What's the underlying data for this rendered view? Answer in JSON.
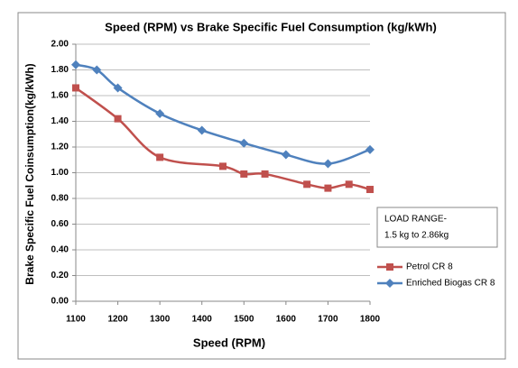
{
  "chart_data": {
    "type": "line",
    "title": "Speed (RPM) vs  Brake Specific Fuel Consumption (kg/kWh)",
    "xlabel": "Speed (RPM)",
    "ylabel": "Brake Specific Fuel Coinsumption(kg/kWh)",
    "annotation": [
      "LOAD RANGE-",
      "1.5 kg to 2.86kg"
    ],
    "xlim": [
      1100,
      1800
    ],
    "xticks": [
      1100,
      1200,
      1300,
      1400,
      1500,
      1600,
      1700,
      1800
    ],
    "ylim": [
      0,
      2
    ],
    "yticks": [
      {
        "value": 0,
        "label": "0.00"
      },
      {
        "value": 0.2,
        "label": "0.20"
      },
      {
        "value": 0.4,
        "label": "0.40"
      },
      {
        "value": 0.6,
        "label": "0.60"
      },
      {
        "value": 0.8,
        "label": "0.80"
      },
      {
        "value": 1,
        "label": "1.00"
      },
      {
        "value": 1.2,
        "label": "1.20"
      },
      {
        "value": 1.4,
        "label": "1.40"
      },
      {
        "value": 1.6,
        "label": "1.60"
      },
      {
        "value": 1.8,
        "label": "1.80"
      },
      {
        "value": 2,
        "label": "2.00"
      }
    ],
    "grid": true,
    "legend": "right",
    "series": [
      {
        "name": "Petrol CR 8",
        "color": "#c0504d",
        "marker": "square",
        "x": [
          1100,
          1200,
          1300,
          1450,
          1500,
          1550,
          1650,
          1700,
          1750,
          1800
        ],
        "values": [
          1.66,
          1.42,
          1.12,
          1.05,
          0.99,
          0.99,
          0.91,
          0.88,
          0.91,
          0.87
        ]
      },
      {
        "name": "Enriched Biogas CR 8",
        "color": "#4f81bd",
        "marker": "diamond",
        "x": [
          1100,
          1150,
          1200,
          1300,
          1400,
          1500,
          1600,
          1700,
          1800
        ],
        "values": [
          1.84,
          1.8,
          1.66,
          1.46,
          1.33,
          1.23,
          1.14,
          1.07,
          1.18
        ]
      }
    ]
  }
}
